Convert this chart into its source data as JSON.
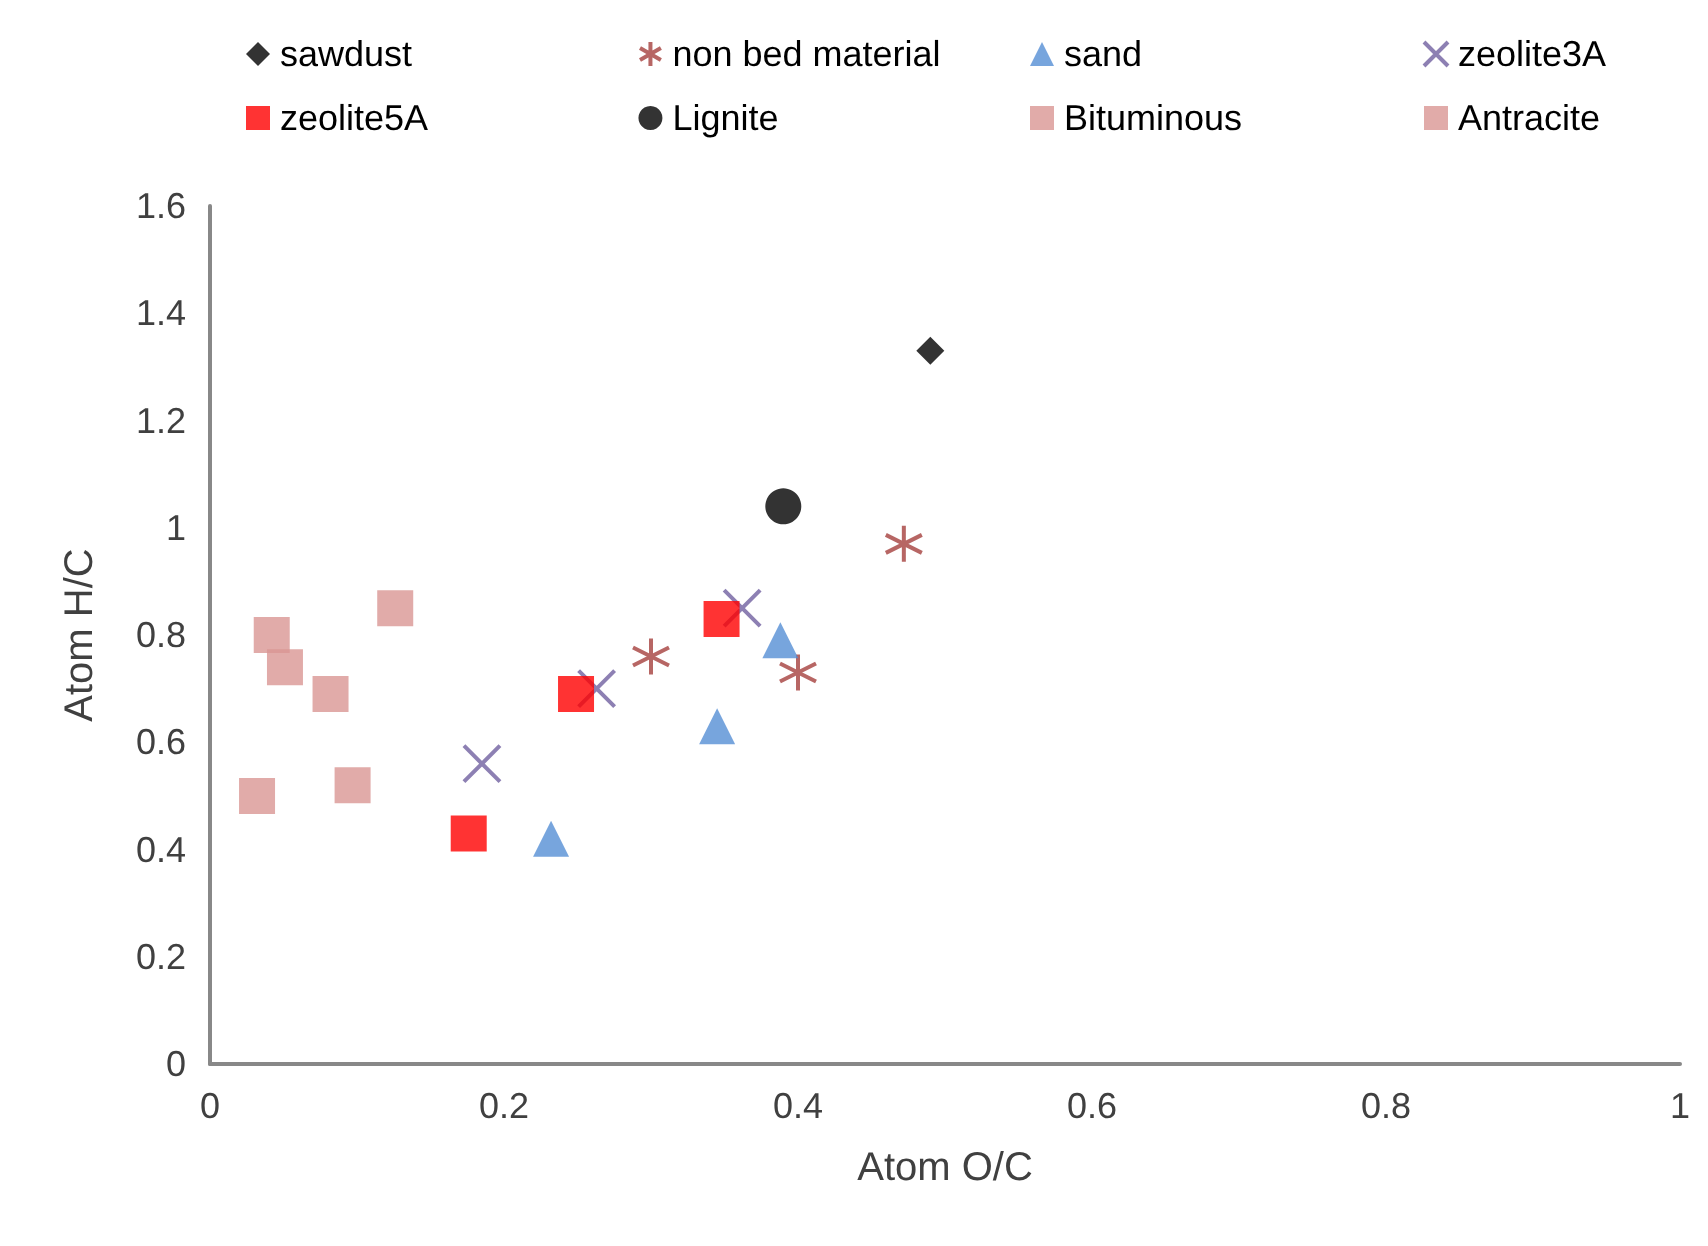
{
  "chart_data": {
    "type": "scatter",
    "xlabel": "Atom O/C",
    "ylabel": "Atom H/C",
    "xlim": [
      0,
      1
    ],
    "ylim": [
      0,
      1.6
    ],
    "xticks": [
      0,
      0.2,
      0.4,
      0.6,
      0.8,
      1
    ],
    "yticks": [
      0,
      0.2,
      0.4,
      0.6,
      0.8,
      1,
      1.2,
      1.4,
      1.6
    ],
    "grid": false,
    "legend": "top",
    "series": [
      {
        "name": "sawdust",
        "color": "#000000",
        "marker": "diamond",
        "x": [
          0.49
        ],
        "values": [
          1.33
        ]
      },
      {
        "name": "non bed material",
        "color": "#a5403d",
        "x": [
          0.472,
          0.3,
          0.4
        ],
        "values": [
          0.97,
          0.76,
          0.73
        ]
      },
      {
        "name": "sand",
        "color": "#558ed5",
        "marker": "triangle",
        "x": [
          0.232,
          0.345,
          0.388
        ],
        "values": [
          0.42,
          0.63,
          0.79
        ]
      },
      {
        "name": "zeolite3A",
        "color": "#7060a0",
        "marker": "cross",
        "x": [
          0.185,
          0.263,
          0.362
        ],
        "values": [
          0.56,
          0.7,
          0.85
        ]
      },
      {
        "name": "zeolite5A",
        "color": "#ff0000",
        "marker": "square",
        "x": [
          0.176,
          0.249,
          0.348
        ],
        "values": [
          0.43,
          0.69,
          0.83
        ]
      },
      {
        "name": "Lignite",
        "color": "#000000",
        "marker": "circle",
        "x": [
          0.39
        ],
        "values": [
          1.04
        ]
      },
      {
        "name": "Bituminous",
        "color": "#d99694",
        "marker": "square",
        "x": [
          0.042,
          0.051,
          0.082,
          0.126,
          0.097
        ],
        "values": [
          0.8,
          0.74,
          0.69,
          0.85,
          0.52
        ]
      },
      {
        "name": "Antracite",
        "color": "#d99694",
        "marker": "square",
        "x": [
          0.032
        ],
        "values": [
          0.5
        ]
      }
    ]
  }
}
